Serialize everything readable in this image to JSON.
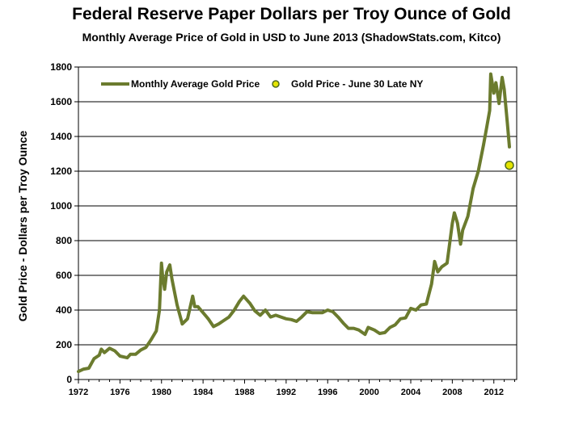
{
  "chart_data": {
    "type": "line",
    "title": "Federal Reserve Paper Dollars per Troy Ounce of Gold",
    "subtitle": "Monthly Average Price of Gold in USD to June 2013 (ShadowStats.com, Kitco)",
    "ylabel": "Gold Price - Dollars per Troy Ounce",
    "xlabel": "",
    "xlim": [
      1972,
      2014.2
    ],
    "ylim": [
      0,
      1800
    ],
    "x_ticks": [
      1972,
      1976,
      1980,
      1984,
      1988,
      1992,
      1996,
      2000,
      2004,
      2008,
      2012
    ],
    "y_ticks": [
      0,
      200,
      400,
      600,
      800,
      1000,
      1200,
      1400,
      1600,
      1800
    ],
    "grid": "horizontal",
    "legend_position": "top-left",
    "colors": {
      "line": "#6b7b2e",
      "marker_fill": "#e4e400",
      "marker_edge": "#4f6b1e",
      "grid": "#000000"
    },
    "series": [
      {
        "name": "Monthly Average Gold Price",
        "x": [
          1972.0,
          1972.5,
          1973.0,
          1973.5,
          1974.0,
          1974.2,
          1974.5,
          1975.0,
          1975.5,
          1976.0,
          1976.7,
          1977.0,
          1977.5,
          1978.0,
          1978.5,
          1979.0,
          1979.5,
          1979.8,
          1980.0,
          1980.1,
          1980.3,
          1980.5,
          1980.8,
          1981.0,
          1981.5,
          1982.0,
          1982.5,
          1983.0,
          1983.2,
          1983.5,
          1984.0,
          1984.5,
          1985.0,
          1985.5,
          1986.0,
          1986.5,
          1987.0,
          1987.5,
          1987.9,
          1988.5,
          1989.0,
          1989.5,
          1990.0,
          1990.5,
          1991.0,
          1991.5,
          1992.0,
          1992.5,
          1993.0,
          1993.5,
          1994.0,
          1994.5,
          1995.0,
          1995.5,
          1996.0,
          1996.5,
          1997.0,
          1997.5,
          1998.0,
          1998.5,
          1999.0,
          1999.6,
          1999.9,
          2000.5,
          2001.0,
          2001.5,
          2002.0,
          2002.5,
          2003.0,
          2003.5,
          2004.0,
          2004.5,
          2005.0,
          2005.5,
          2006.0,
          2006.3,
          2006.6,
          2007.0,
          2007.5,
          2008.0,
          2008.2,
          2008.5,
          2008.8,
          2009.0,
          2009.5,
          2010.0,
          2010.5,
          2011.0,
          2011.3,
          2011.6,
          2011.7,
          2012.0,
          2012.2,
          2012.5,
          2012.8,
          2013.0,
          2013.3,
          2013.5
        ],
        "values": [
          46,
          60,
          65,
          120,
          140,
          175,
          155,
          180,
          165,
          135,
          125,
          145,
          145,
          170,
          185,
          230,
          280,
          400,
          670,
          600,
          520,
          620,
          660,
          580,
          430,
          320,
          350,
          480,
          420,
          420,
          385,
          350,
          305,
          320,
          340,
          360,
          400,
          450,
          480,
          440,
          395,
          370,
          400,
          360,
          370,
          360,
          350,
          345,
          335,
          360,
          390,
          385,
          385,
          385,
          400,
          390,
          360,
          325,
          295,
          295,
          285,
          260,
          300,
          285,
          265,
          270,
          300,
          315,
          350,
          355,
          410,
          400,
          430,
          435,
          550,
          680,
          620,
          650,
          670,
          900,
          960,
          900,
          780,
          860,
          940,
          1100,
          1200,
          1350,
          1450,
          1550,
          1760,
          1650,
          1710,
          1590,
          1740,
          1670,
          1480,
          1340
        ]
      },
      {
        "name": "Gold Price - June 30 Late NY",
        "x": [
          2013.5
        ],
        "values": [
          1234
        ]
      }
    ]
  }
}
